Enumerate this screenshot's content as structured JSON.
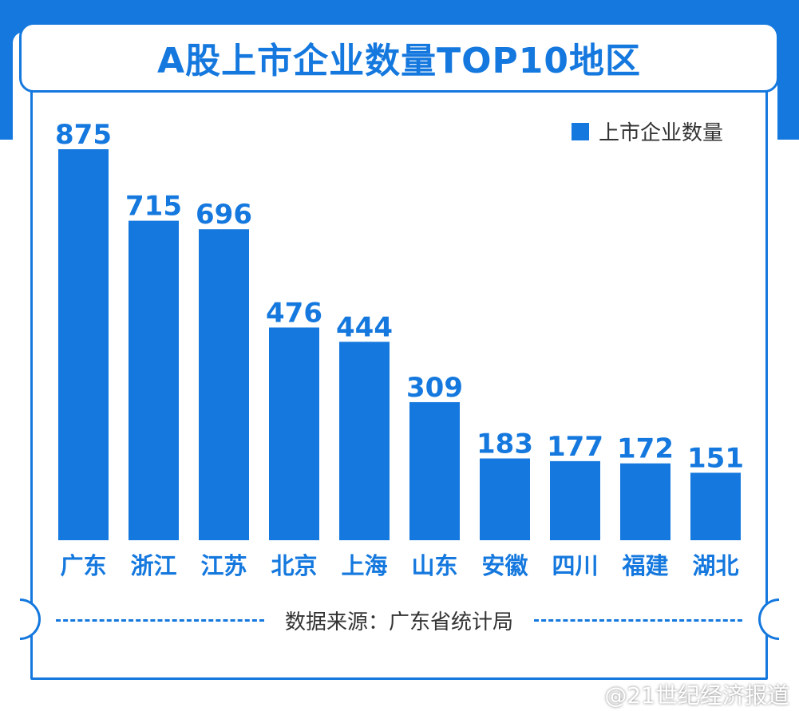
{
  "title": "A股上市企业数量TOP10地区",
  "legend": {
    "label": "上市企业数量",
    "color": "#1478de"
  },
  "source": "数据来源：广东省统计局",
  "watermark": "@21世纪经济报道",
  "chart_data": {
    "type": "bar",
    "title": "A股上市企业数量TOP10地区",
    "categories": [
      "广东",
      "浙江",
      "江苏",
      "北京",
      "上海",
      "山东",
      "安徽",
      "四川",
      "福建",
      "湖北"
    ],
    "series": [
      {
        "name": "上市企业数量",
        "values": [
          875,
          715,
          696,
          476,
          444,
          309,
          183,
          177,
          172,
          151
        ]
      }
    ],
    "value_labels": [
      "875",
      "715",
      "696",
      "476",
      "444",
      "309",
      "183",
      "177",
      "172",
      "151"
    ],
    "ylim": [
      0,
      875
    ],
    "grid": false,
    "legend_position": "top-right",
    "bar_color": "#1478de"
  }
}
